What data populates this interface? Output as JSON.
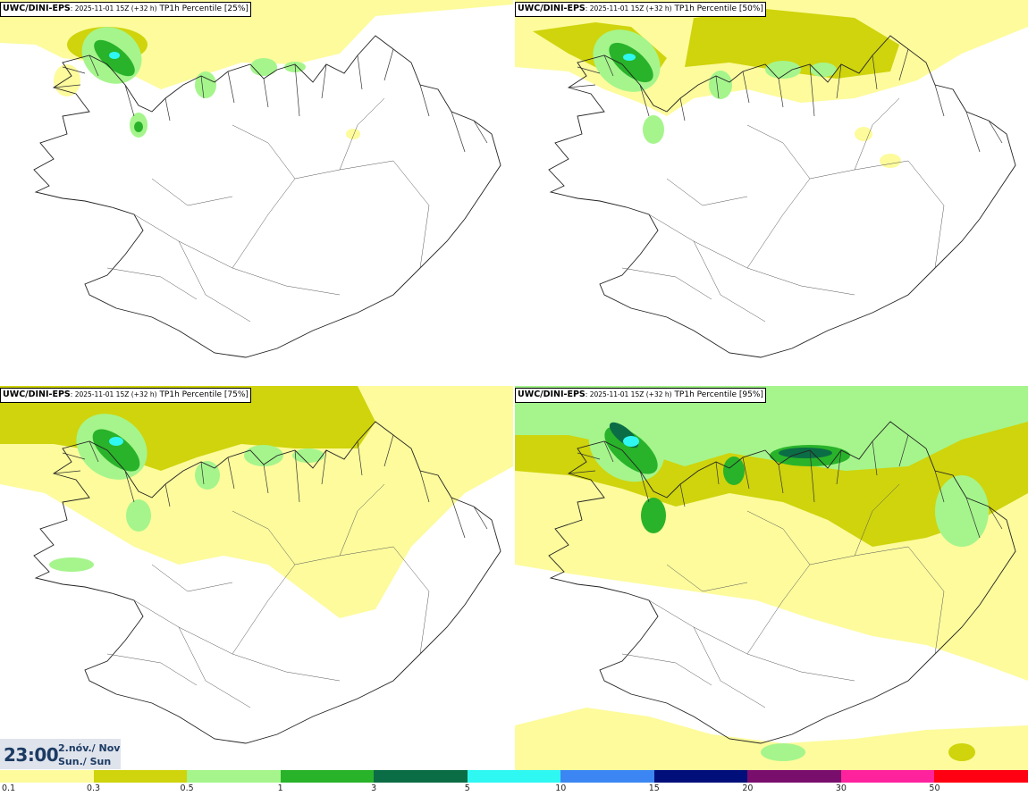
{
  "panels": [
    {
      "model": "UWC/DINI-EPS",
      "run": "2025-11-01 15Z (+32 h)",
      "field": "TP1h Percentile [25%]"
    },
    {
      "model": "UWC/DINI-EPS",
      "run": "2025-11-01 15Z (+32 h)",
      "field": "TP1h Percentile [50%]"
    },
    {
      "model": "UWC/DINI-EPS",
      "run": "2025-11-01 15Z (+32 h)",
      "field": "TP1h Percentile [75%]"
    },
    {
      "model": "UWC/DINI-EPS",
      "run": "2025-11-01 15Z (+32 h)",
      "field": "TP1h Percentile [95%]"
    }
  ],
  "valid_time": {
    "time": "23:00",
    "date_line1": "2.nóv./ Nov",
    "date_line2": "Sun./ Sun"
  },
  "legend": {
    "colors": [
      "#fdfb9c",
      "#cfd40c",
      "#a5f58c",
      "#29b32a",
      "#0b6d45",
      "#2ff7f2",
      "#3b86f2",
      "#000f7a",
      "#7a0e6d",
      "#ff229d",
      "#ff0012"
    ],
    "labels": [
      "0.1",
      "0.3",
      "0.5",
      "1",
      "3",
      "5",
      "10",
      "15",
      "20",
      "30",
      "50"
    ]
  }
}
